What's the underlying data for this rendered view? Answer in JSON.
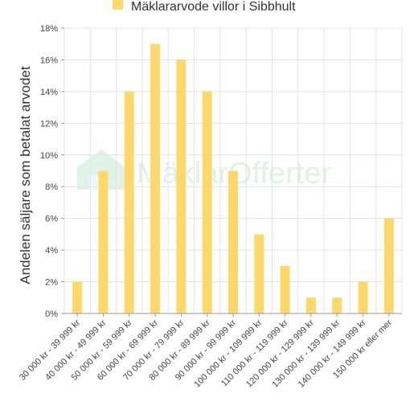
{
  "chart_data": {
    "type": "bar",
    "title": "",
    "legend": {
      "position": "top-center",
      "entries": [
        "Mäklararvode villor i Sibbhult"
      ]
    },
    "series": [
      {
        "name": "Mäklararvode villor i Sibbhult",
        "color": "#ffd86b",
        "values": [
          2,
          9,
          14,
          17,
          16,
          14,
          9,
          5,
          3,
          1,
          1,
          2,
          6
        ]
      }
    ],
    "categories": [
      "30 000 kr - 39 999 kr",
      "40 000 kr - 49 999 kr",
      "50 000 kr - 59 999 kr",
      "60 000 kr - 69 999 kr",
      "70 000 kr - 79 999 kr",
      "80 000 kr - 89 999 kr",
      "90 000 kr - 99 999 kr",
      "100 000 kr - 109 999 kr",
      "110 000 kr - 119 999 kr",
      "120 000 kr - 129 999 kr",
      "130 000 kr - 139 999 kr",
      "140 000 kr - 149 999 kr",
      "150 000 kr eller mer"
    ],
    "ylabel": "Andelen säljare som betalat arvodet",
    "xlabel": "",
    "ylim": [
      0,
      18
    ],
    "yticks": [
      0,
      2,
      4,
      6,
      8,
      10,
      12,
      14,
      16,
      18
    ],
    "ytick_suffix": "%",
    "grid": true,
    "watermark": {
      "text": "MäklarOfferter",
      "icon": "house-icon"
    }
  }
}
